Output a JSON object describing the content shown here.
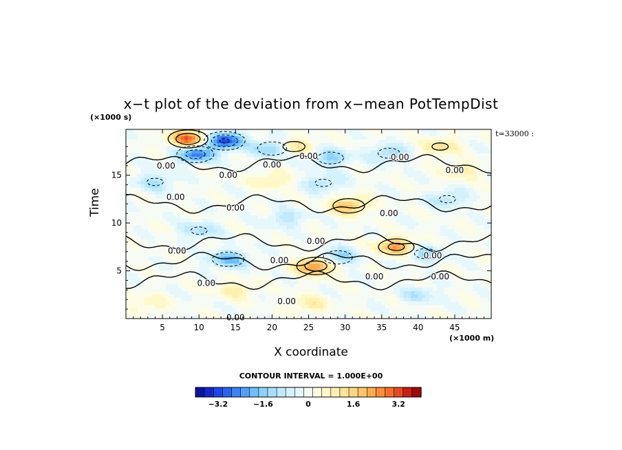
{
  "chart_data": {
    "type": "heatmap",
    "title": "x−t plot of the deviation from x−mean PotTempDist",
    "xlabel": "X coordinate",
    "ylabel": "Time",
    "x_unit": "(×1000 m)",
    "y_unit": "(×1000 s)",
    "annotation": "t=33000 :",
    "xlim": [
      0,
      50
    ],
    "ylim": [
      0,
      19.8
    ],
    "xticks": [
      "5",
      "10",
      "15",
      "20",
      "25",
      "30",
      "35",
      "40",
      "45"
    ],
    "yticks": [
      "5",
      "10",
      "15"
    ],
    "contour_interval_text": "CONTOUR INTERVAL = 1.000E+00",
    "contour_label": "0.00",
    "colorbar": {
      "range": [
        -4.0,
        4.0
      ],
      "tick_labels": [
        "−3.2",
        "−1.6",
        "0",
        "1.6",
        "3.2"
      ],
      "tick_values": [
        -3.2,
        -1.6,
        0,
        1.6,
        3.2
      ],
      "colors": [
        "#0a14a0",
        "#1428c8",
        "#1e46e6",
        "#2864f0",
        "#3c82f5",
        "#50a0fa",
        "#6ebef8",
        "#8cd2fa",
        "#a8e0fa",
        "#c0eafc",
        "#d4f2fc",
        "#e6f8fc",
        "#f6fcf4",
        "#fdfce4",
        "#fff8c8",
        "#fff0b0",
        "#ffe498",
        "#ffd680",
        "#ffc468",
        "#ffaa50",
        "#ff8c3c",
        "#f56e28",
        "#e64b1e",
        "#c81e14",
        "#a00a0a"
      ]
    },
    "features": [
      {
        "x": 8.5,
        "y": 18.8,
        "value": 3.0
      },
      {
        "x": 13.5,
        "y": 18.6,
        "value": -3.2
      },
      {
        "x": 9.5,
        "y": 17.2,
        "value": -2.6
      },
      {
        "x": 20.0,
        "y": 17.8,
        "value": -1.8
      },
      {
        "x": 23.0,
        "y": 18.0,
        "value": 1.4
      },
      {
        "x": 28.0,
        "y": 16.8,
        "value": -1.6
      },
      {
        "x": 36.0,
        "y": 17.3,
        "value": -1.4
      },
      {
        "x": 43.0,
        "y": 18.0,
        "value": 1.2
      },
      {
        "x": 30.5,
        "y": 11.8,
        "value": 2.0
      },
      {
        "x": 37.0,
        "y": 7.5,
        "value": 2.4
      },
      {
        "x": 26.0,
        "y": 5.5,
        "value": 2.8
      },
      {
        "x": 14.0,
        "y": 6.2,
        "value": -2.0
      },
      {
        "x": 29.0,
        "y": 6.4,
        "value": -1.8
      },
      {
        "x": 41.0,
        "y": 6.8,
        "value": -1.4
      },
      {
        "x": 44.0,
        "y": 12.5,
        "value": -1.2
      },
      {
        "x": 4.0,
        "y": 14.3,
        "value": -1.2
      },
      {
        "x": 20.0,
        "y": 14.5,
        "value": 1.0
      },
      {
        "x": 27.0,
        "y": 14.2,
        "value": -1.2
      },
      {
        "x": 46.0,
        "y": 15.5,
        "value": 1.0
      },
      {
        "x": 22.0,
        "y": 10.5,
        "value": -1.0
      },
      {
        "x": 10.0,
        "y": 9.2,
        "value": -1.2
      },
      {
        "x": 40.0,
        "y": 2.5,
        "value": -1.0
      },
      {
        "x": 25.0,
        "y": 1.5,
        "value": 1.0
      },
      {
        "x": 3.0,
        "y": 1.5,
        "value": 0.8
      },
      {
        "x": 15.0,
        "y": 3.0,
        "value": 1.0
      }
    ],
    "contour_labels_at": [
      {
        "x": 5.5,
        "y": 16.0
      },
      {
        "x": 20.0,
        "y": 16.1
      },
      {
        "x": 14.0,
        "y": 15.0
      },
      {
        "x": 25.0,
        "y": 17.0
      },
      {
        "x": 37.5,
        "y": 16.9
      },
      {
        "x": 45.0,
        "y": 15.5
      },
      {
        "x": 6.8,
        "y": 12.7
      },
      {
        "x": 15.0,
        "y": 11.6
      },
      {
        "x": 36.0,
        "y": 11.0
      },
      {
        "x": 26.0,
        "y": 8.1
      },
      {
        "x": 7.0,
        "y": 7.1
      },
      {
        "x": 21.0,
        "y": 6.1
      },
      {
        "x": 42.0,
        "y": 6.6
      },
      {
        "x": 11.0,
        "y": 3.7
      },
      {
        "x": 34.0,
        "y": 4.4
      },
      {
        "x": 22.0,
        "y": 1.8
      },
      {
        "x": 15.0,
        "y": 0.1
      },
      {
        "x": 43.0,
        "y": 4.4
      }
    ]
  }
}
